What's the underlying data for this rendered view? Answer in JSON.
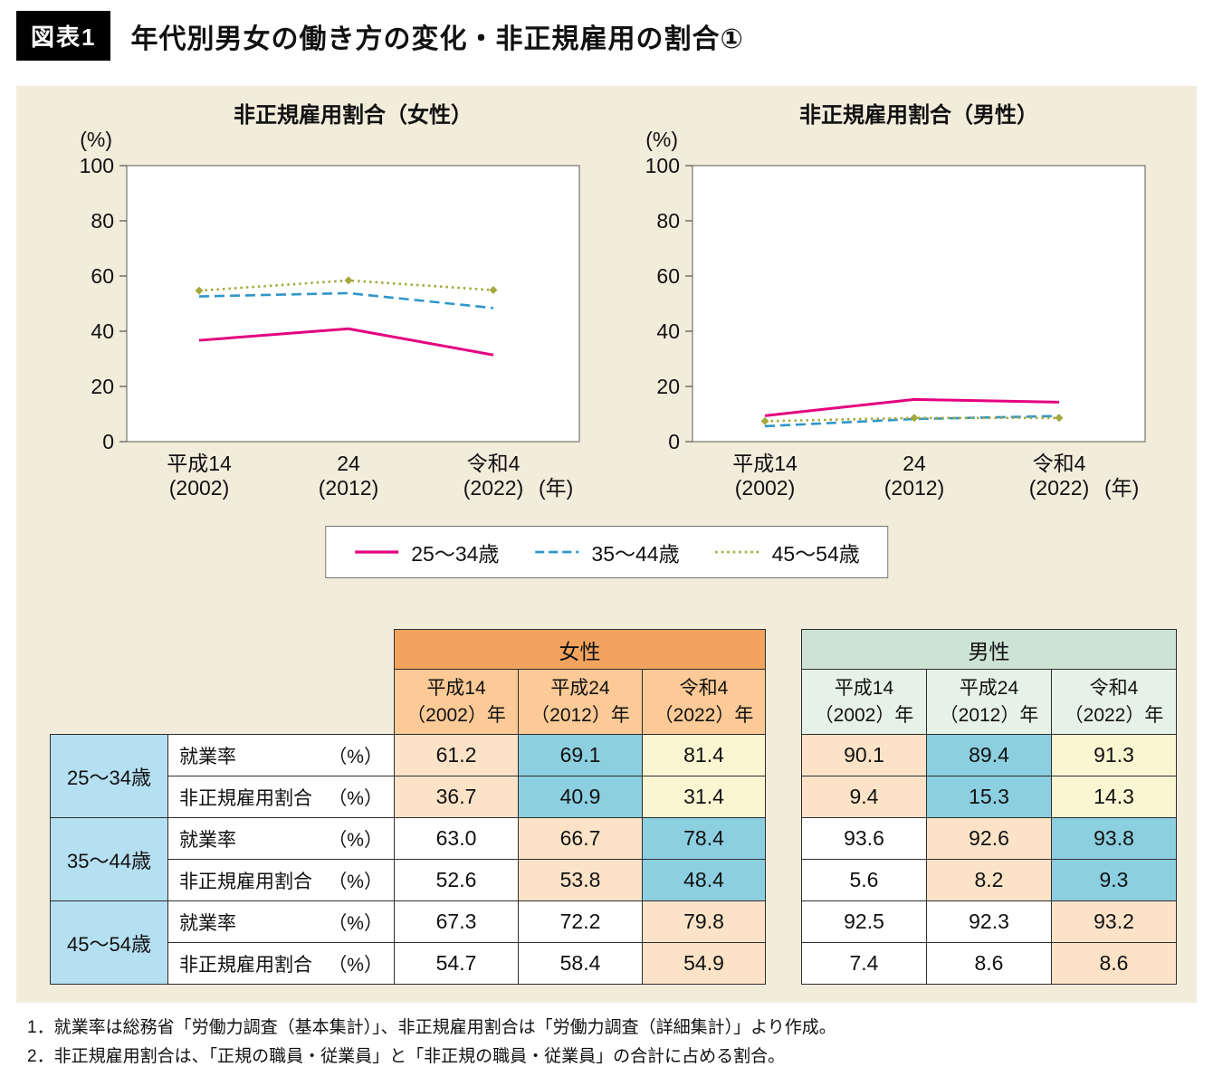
{
  "header": {
    "tag": "図表1",
    "title": "年代別男女の働き方の変化・非正規雇用の割合①"
  },
  "legend": {
    "items": [
      {
        "label": "25〜34歳",
        "color": "#e4007f",
        "style": "solid"
      },
      {
        "label": "35〜44歳",
        "color": "#2f96c8",
        "style": "dashed"
      },
      {
        "label": "45〜54歳",
        "color": "#a3a93c",
        "style": "dotted"
      }
    ]
  },
  "chart_data": [
    {
      "type": "line",
      "title": "非正規雇用割合（女性）",
      "unit_label": "(%)",
      "ylim": [
        0,
        100
      ],
      "yticks": [
        0,
        20,
        40,
        60,
        80,
        100
      ],
      "x_tick_labels": [
        [
          "平成14",
          "(2002)"
        ],
        [
          "24",
          "(2012)"
        ],
        [
          "令和4",
          "(2022)"
        ]
      ],
      "x_axis_suffix": "(年)",
      "grid": false,
      "series": [
        {
          "name": "25〜34歳",
          "values": [
            36.7,
            40.9,
            31.4
          ],
          "color": "#e4007f",
          "style": "solid",
          "marker": "none"
        },
        {
          "name": "35〜44歳",
          "values": [
            52.6,
            53.8,
            48.4
          ],
          "color": "#2f96c8",
          "style": "dashed",
          "marker": "none"
        },
        {
          "name": "45〜54歳",
          "values": [
            54.7,
            58.4,
            54.9
          ],
          "color": "#a3a93c",
          "style": "dotted",
          "marker": "diamond"
        }
      ]
    },
    {
      "type": "line",
      "title": "非正規雇用割合（男性）",
      "unit_label": "(%)",
      "ylim": [
        0,
        100
      ],
      "yticks": [
        0,
        20,
        40,
        60,
        80,
        100
      ],
      "x_tick_labels": [
        [
          "平成14",
          "(2002)"
        ],
        [
          "24",
          "(2012)"
        ],
        [
          "令和4",
          "(2022)"
        ]
      ],
      "x_axis_suffix": "(年)",
      "grid": false,
      "series": [
        {
          "name": "25〜34歳",
          "values": [
            9.4,
            15.3,
            14.3
          ],
          "color": "#e4007f",
          "style": "solid",
          "marker": "none"
        },
        {
          "name": "35〜44歳",
          "values": [
            5.6,
            8.2,
            9.3
          ],
          "color": "#2f96c8",
          "style": "dashed",
          "marker": "none"
        },
        {
          "name": "45〜54歳",
          "values": [
            7.4,
            8.6,
            8.6
          ],
          "color": "#a3a93c",
          "style": "dotted",
          "marker": "diamond"
        }
      ]
    }
  ],
  "tables": {
    "age_groups": [
      "25〜34歳",
      "35〜44歳",
      "45〜54歳"
    ],
    "metrics": [
      "就業率",
      "非正規雇用割合"
    ],
    "metrics_unit": "（%）",
    "columns": [
      [
        "平成14",
        "（2002）年"
      ],
      [
        "平成24",
        "（2012）年"
      ],
      [
        "令和4",
        "（2022）年"
      ]
    ],
    "age_bg": "#b5e0f2",
    "women": {
      "title": "女性",
      "title_bg": "#f2a45f",
      "colhead_bg": "#fbca96",
      "values": [
        [
          "61.2",
          "69.1",
          "81.4"
        ],
        [
          "36.7",
          "40.9",
          "31.4"
        ],
        [
          "63.0",
          "66.7",
          "78.4"
        ],
        [
          "52.6",
          "53.8",
          "48.4"
        ],
        [
          "67.3",
          "72.2",
          "79.8"
        ],
        [
          "54.7",
          "58.4",
          "54.9"
        ]
      ]
    },
    "men": {
      "title": "男性",
      "title_bg": "#cde3d4",
      "colhead_bg": "#e6f1e8",
      "values": [
        [
          "90.1",
          "89.4",
          "91.3"
        ],
        [
          "9.4",
          "15.3",
          "14.3"
        ],
        [
          "93.6",
          "92.6",
          "93.8"
        ],
        [
          "5.6",
          "8.2",
          "9.3"
        ],
        [
          "92.5",
          "92.3",
          "93.2"
        ],
        [
          "7.4",
          "8.6",
          "8.6"
        ]
      ]
    },
    "cell_highlights": [
      [
        "peach",
        "blue",
        "yellow"
      ],
      [
        "peach",
        "blue",
        "yellow"
      ],
      [
        "none",
        "peach",
        "blue"
      ],
      [
        "none",
        "peach",
        "blue"
      ],
      [
        "none",
        "none",
        "peach"
      ],
      [
        "none",
        "none",
        "peach"
      ]
    ],
    "highlight_colors": {
      "peach": "#fce3c8",
      "blue": "#8ccfe0",
      "yellow": "#faf6d2",
      "none": "#ffffff"
    }
  },
  "notes": [
    "1．就業率は総務省「労働力調査（基本集計）」、非正規雇用割合は「労働力調査（詳細集計）」より作成。",
    "2．非正規雇用割合は、「正規の職員・従業員」と「非正規の職員・従業員」の合計に占める割合。"
  ]
}
